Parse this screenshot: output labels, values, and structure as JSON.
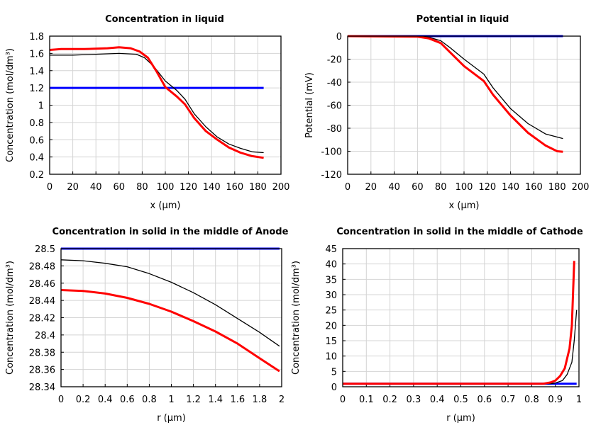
{
  "chart_data": [
    {
      "type": "line",
      "title": "Concentration in liquid",
      "xlabel": "x (µm)",
      "ylabel": "Concentration (mol/dm³)",
      "xlim": [
        0,
        200
      ],
      "ylim": [
        0.2,
        1.8
      ],
      "xticks": [
        0,
        20,
        40,
        60,
        80,
        100,
        120,
        140,
        160,
        180,
        200
      ],
      "yticks": [
        0.2,
        0.4,
        0.6,
        0.8,
        1,
        1.2,
        1.4,
        1.6,
        1.8
      ],
      "grid": true,
      "series": [
        {
          "color": "#0000ff",
          "x": [
            0,
            185
          ],
          "y": [
            1.2,
            1.2
          ]
        },
        {
          "color": "#000000",
          "x": [
            0,
            20,
            40,
            60,
            75,
            82,
            90,
            100,
            110,
            117,
            125,
            135,
            145,
            155,
            165,
            175,
            185
          ],
          "y": [
            1.58,
            1.58,
            1.59,
            1.6,
            1.59,
            1.55,
            1.45,
            1.28,
            1.17,
            1.07,
            0.9,
            0.75,
            0.63,
            0.55,
            0.5,
            0.46,
            0.45
          ]
        },
        {
          "color": "#ff0000",
          "x": [
            0,
            10,
            30,
            50,
            60,
            70,
            78,
            85,
            92,
            100,
            110,
            117,
            125,
            135,
            145,
            155,
            165,
            175,
            185
          ],
          "y": [
            1.64,
            1.65,
            1.65,
            1.66,
            1.67,
            1.66,
            1.62,
            1.55,
            1.4,
            1.21,
            1.1,
            1.01,
            0.85,
            0.7,
            0.6,
            0.51,
            0.45,
            0.41,
            0.39
          ]
        }
      ]
    },
    {
      "type": "line",
      "title": "Potential in liquid",
      "xlabel": "x (µm)",
      "ylabel": "Potential (mV)",
      "xlim": [
        0,
        200
      ],
      "ylim": [
        -120,
        0
      ],
      "xticks": [
        0,
        20,
        40,
        60,
        80,
        100,
        120,
        140,
        160,
        180,
        200
      ],
      "yticks": [
        -120,
        -100,
        -80,
        -60,
        -40,
        -20,
        0
      ],
      "grid": true,
      "series": [
        {
          "color": "#0000ff",
          "x": [
            0,
            185
          ],
          "y": [
            0,
            0
          ]
        },
        {
          "color": "#000000",
          "x": [
            0,
            60,
            70,
            80,
            88,
            100,
            117,
            125,
            140,
            155,
            170,
            185
          ],
          "y": [
            0,
            0,
            -1,
            -4,
            -10,
            -20,
            -33,
            -45,
            -63,
            -76,
            -85,
            -89
          ]
        },
        {
          "color": "#ff0000",
          "x": [
            0,
            60,
            70,
            80,
            88,
            100,
            117,
            125,
            140,
            155,
            170,
            180,
            185
          ],
          "y": [
            0,
            -0.5,
            -2,
            -6,
            -14,
            -26,
            -39,
            -51,
            -69,
            -84,
            -95,
            -100,
            -100.5
          ]
        }
      ]
    },
    {
      "type": "line",
      "title": "Concentration in solid in the middle of Anode",
      "xlabel": "r (µm)",
      "ylabel": "Concentration (mol/dm³)",
      "xlim": [
        0,
        2
      ],
      "ylim": [
        28.34,
        28.5
      ],
      "xticks": [
        0,
        0.2,
        0.4,
        0.6,
        0.8,
        1,
        1.2,
        1.4,
        1.6,
        1.8,
        2
      ],
      "yticks": [
        28.34,
        28.36,
        28.38,
        28.4,
        28.42,
        28.44,
        28.46,
        28.48,
        28.5
      ],
      "grid": true,
      "series": [
        {
          "color": "#0000ff",
          "x": [
            0,
            1.98
          ],
          "y": [
            28.5,
            28.5
          ]
        },
        {
          "color": "#000000",
          "x": [
            0,
            0.2,
            0.4,
            0.6,
            0.8,
            1,
            1.2,
            1.4,
            1.6,
            1.8,
            1.98
          ],
          "y": [
            28.487,
            28.486,
            28.483,
            28.479,
            28.471,
            28.461,
            28.449,
            28.435,
            28.419,
            28.403,
            28.387
          ]
        },
        {
          "color": "#ff0000",
          "x": [
            0,
            0.2,
            0.4,
            0.6,
            0.8,
            1,
            1.2,
            1.4,
            1.6,
            1.8,
            1.98
          ],
          "y": [
            28.452,
            28.451,
            28.448,
            28.443,
            28.436,
            28.427,
            28.416,
            28.404,
            28.39,
            28.373,
            28.358
          ]
        }
      ]
    },
    {
      "type": "line",
      "title": "Concentration in solid in the middle of Cathode",
      "xlabel": "r (µm)",
      "ylabel": "Concentration (mol/dm³)",
      "xlim": [
        0,
        1
      ],
      "ylim": [
        0,
        45
      ],
      "xticks": [
        0,
        0.1,
        0.2,
        0.3,
        0.4,
        0.5,
        0.6,
        0.7,
        0.8,
        0.9,
        1
      ],
      "yticks": [
        0,
        5,
        10,
        15,
        20,
        25,
        30,
        35,
        40,
        45
      ],
      "grid": true,
      "series": [
        {
          "color": "#0000ff",
          "x": [
            0,
            0.99
          ],
          "y": [
            1,
            1
          ]
        },
        {
          "color": "#000000",
          "x": [
            0,
            0.88,
            0.9,
            0.93,
            0.95,
            0.97,
            0.98,
            0.99
          ],
          "y": [
            1,
            1,
            1.2,
            2,
            4,
            8,
            15,
            25
          ]
        },
        {
          "color": "#ff0000",
          "x": [
            0,
            0.85,
            0.88,
            0.9,
            0.92,
            0.94,
            0.96,
            0.97,
            0.98
          ],
          "y": [
            1,
            1,
            1.4,
            2,
            3.5,
            6,
            12.5,
            20,
            41
          ]
        }
      ]
    }
  ]
}
